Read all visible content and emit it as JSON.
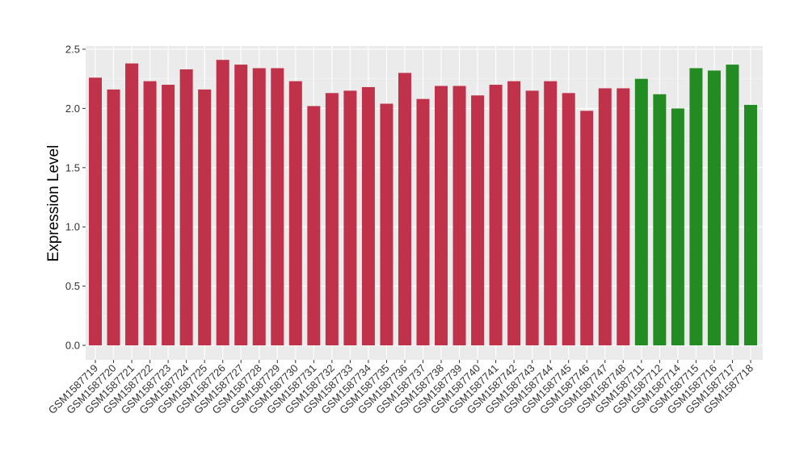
{
  "chart_data": {
    "type": "bar",
    "title": "",
    "xlabel": "",
    "ylabel": "Expression Level",
    "ylim": [
      0,
      2.5
    ],
    "yticks": [
      "0.0",
      "0.5",
      "1.0",
      "1.5",
      "2.0",
      "2.5"
    ],
    "grid": true,
    "categories": [
      "GSM1587719",
      "GSM1587720",
      "GSM1587721",
      "GSM1587722",
      "GSM1587723",
      "GSM1587724",
      "GSM1587725",
      "GSM1587726",
      "GSM1587727",
      "GSM1587728",
      "GSM1587729",
      "GSM1587730",
      "GSM1587731",
      "GSM1587732",
      "GSM1587733",
      "GSM1587734",
      "GSM1587735",
      "GSM1587736",
      "GSM1587737",
      "GSM1587738",
      "GSM1587739",
      "GSM1587740",
      "GSM1587741",
      "GSM1587742",
      "GSM1587743",
      "GSM1587744",
      "GSM1587745",
      "GSM1587746",
      "GSM1587747",
      "GSM1587748",
      "GSM1587711",
      "GSM1587712",
      "GSM1587714",
      "GSM1587715",
      "GSM1587716",
      "GSM1587717",
      "GSM1587718"
    ],
    "values": [
      2.26,
      2.16,
      2.38,
      2.23,
      2.2,
      2.33,
      2.16,
      2.41,
      2.37,
      2.34,
      2.34,
      2.23,
      2.02,
      2.13,
      2.15,
      2.18,
      2.04,
      2.3,
      2.08,
      2.19,
      2.19,
      2.11,
      2.2,
      2.23,
      2.15,
      2.23,
      2.13,
      1.98,
      2.17,
      2.17,
      2.25,
      2.12,
      2.0,
      2.34,
      2.32,
      2.37,
      2.03
    ],
    "groups": [
      "red",
      "red",
      "red",
      "red",
      "red",
      "red",
      "red",
      "red",
      "red",
      "red",
      "red",
      "red",
      "red",
      "red",
      "red",
      "red",
      "red",
      "red",
      "red",
      "red",
      "red",
      "red",
      "red",
      "red",
      "red",
      "red",
      "red",
      "red",
      "red",
      "red",
      "green",
      "green",
      "green",
      "green",
      "green",
      "green",
      "green"
    ],
    "colors": {
      "red": "#C0314A",
      "green": "#228B22",
      "panel": "#EBEBEB",
      "grid": "#FFFFFF"
    }
  }
}
